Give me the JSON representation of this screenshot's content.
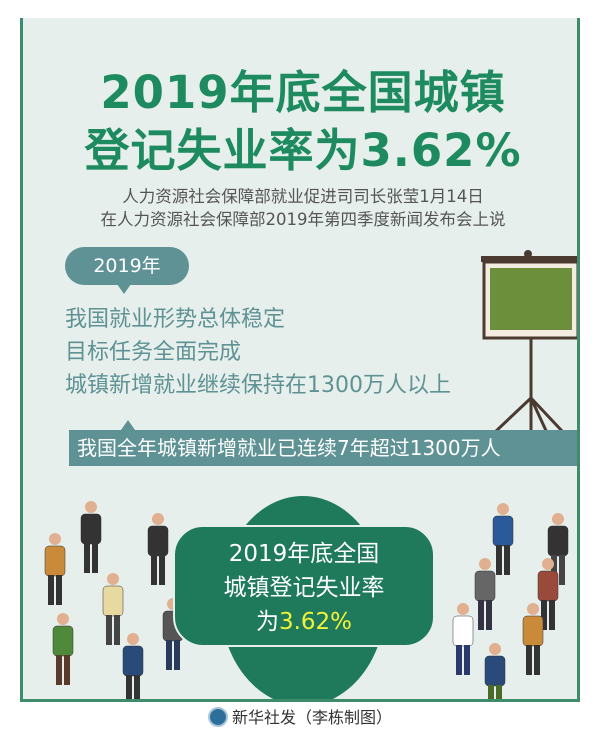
{
  "title": {
    "line1": "2019年底全国城镇",
    "line2": "登记失业率为3.62%"
  },
  "subtitle": {
    "line1": "人力资源社会保障部就业促进司司长张莹1月14日",
    "line2": "在人力资源社会保障部2019年第四季度新闻发布会上说"
  },
  "bubble": "2019年",
  "points": [
    "我国就业形势总体稳定",
    "目标任务全面完成",
    "城镇新增就业继续保持在1300万人以上"
  ],
  "banner": "我国全年城镇新增就业已连续7年超过1300万人",
  "card": {
    "line1": "2019年底全国",
    "line2": "城镇登记失业率",
    "line3_prefix": "为",
    "line3_value": "3.62%"
  },
  "footer": {
    "logo": "新华社",
    "text": "新华社发（李栋制图）"
  },
  "colors": {
    "title": "#1d8a5f",
    "accent": "#5f9294",
    "card": "#1e7a5a",
    "highlight": "#f2f23a",
    "background": "#e6efeb"
  }
}
